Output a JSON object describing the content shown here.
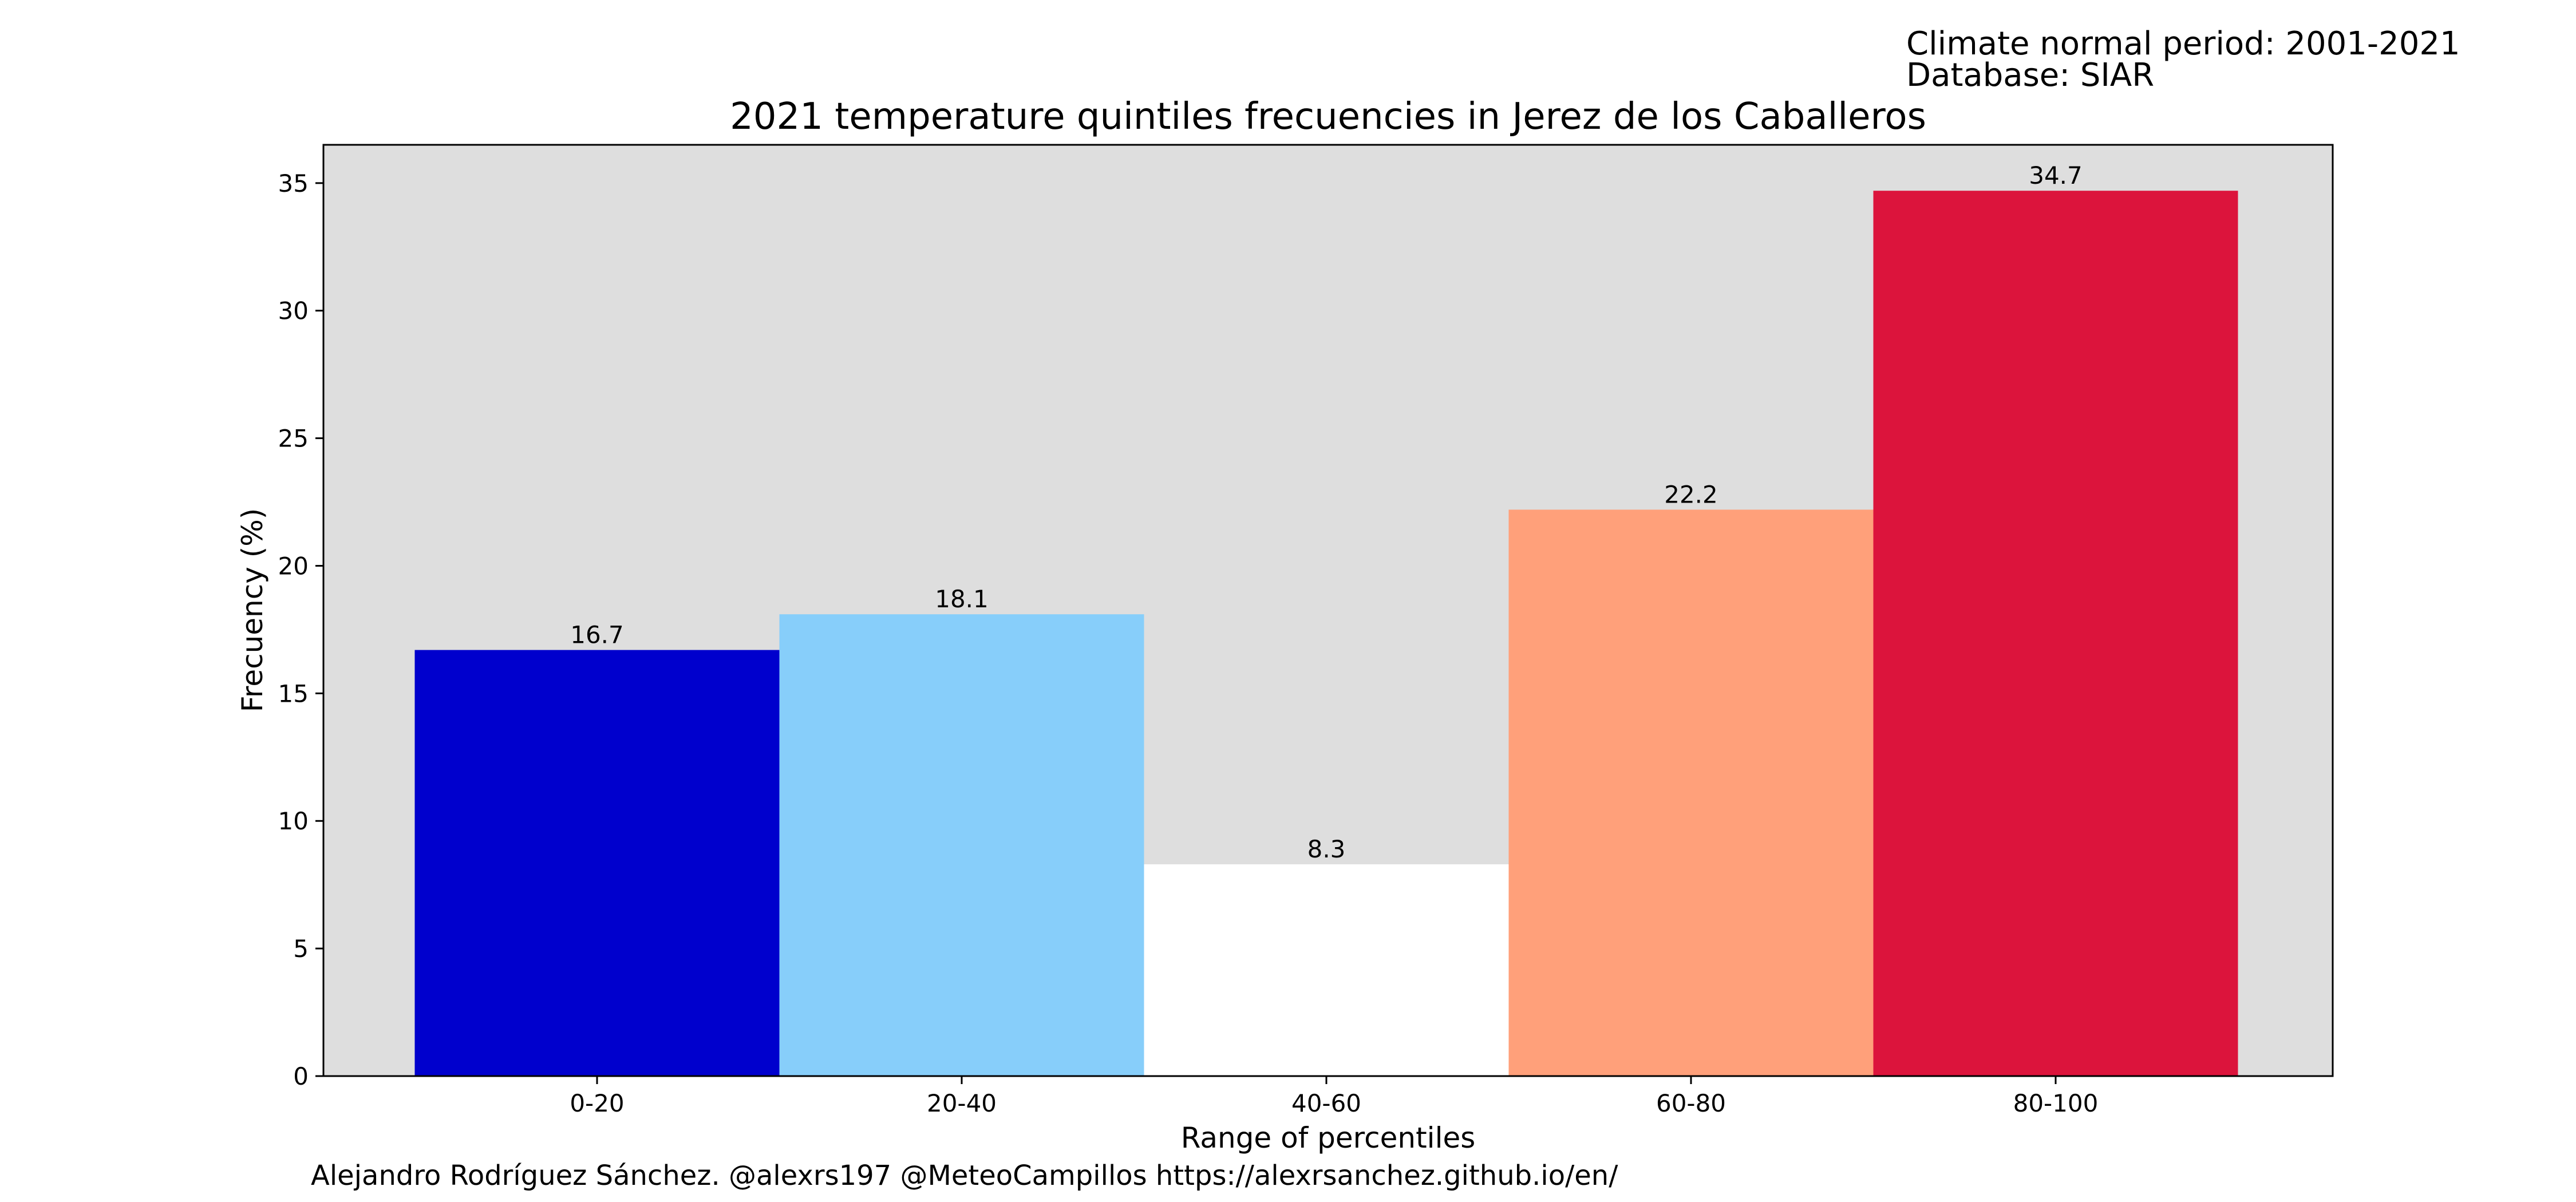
{
  "header": {
    "climate_period": "Climate normal period: 2001-2021",
    "database": "Database: SIAR"
  },
  "footer": {
    "credits": "Alejandro Rodríguez Sánchez. @alexrs197 @MeteoCampillos   https://alexrsanchez.github.io/en/"
  },
  "chart_data": {
    "type": "bar",
    "title": "2021 temperature quintiles frecuencies in Jerez de los Caballeros",
    "xlabel": "Range of percentiles",
    "ylabel": "Frecuency (%)",
    "categories": [
      "0-20",
      "20-40",
      "40-60",
      "60-80",
      "80-100"
    ],
    "values": [
      16.7,
      18.1,
      8.3,
      22.2,
      34.7
    ],
    "value_labels": [
      "16.7",
      "18.1",
      "8.3",
      "22.2",
      "34.7"
    ],
    "colors": [
      "#0000cd",
      "#87cefa",
      "#ffffff",
      "#ffa07a",
      "#dc143c"
    ],
    "ylim": [
      0,
      36.5
    ],
    "yticks": [
      0,
      5,
      10,
      15,
      20,
      25,
      30,
      35
    ],
    "plot_background": "#dedede",
    "grid": false
  }
}
